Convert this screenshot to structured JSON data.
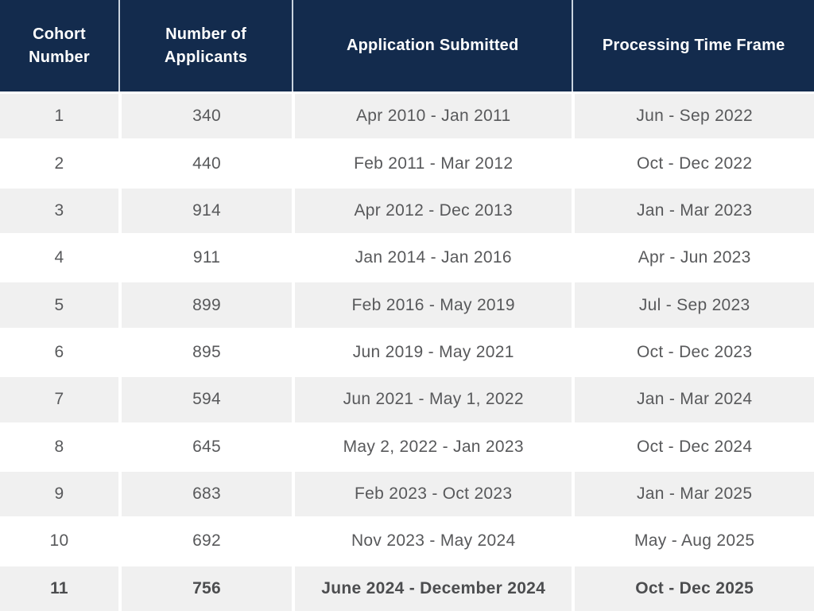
{
  "colors": {
    "header_bg": "#132b4d",
    "header_text": "#ffffff",
    "header_divider": "#c9d3de",
    "row_alt_bg": "#f0f0f0",
    "row_bg": "#ffffff",
    "body_text": "#58595b"
  },
  "table": {
    "headers": [
      {
        "label": "Cohort\nNumber"
      },
      {
        "label": "Number of\nApplicants"
      },
      {
        "label": "Application Submitted"
      },
      {
        "label": "Processing Time Frame"
      }
    ],
    "rows": [
      {
        "cohort": "1",
        "applicants": "340",
        "submitted": "Apr 2010 - Jan 2011",
        "processing": "Jun - Sep 2022",
        "emphasis": false
      },
      {
        "cohort": "2",
        "applicants": "440",
        "submitted": "Feb 2011 - Mar 2012",
        "processing": "Oct - Dec 2022",
        "emphasis": false
      },
      {
        "cohort": "3",
        "applicants": "914",
        "submitted": "Apr 2012 - Dec 2013",
        "processing": "Jan - Mar 2023",
        "emphasis": false
      },
      {
        "cohort": "4",
        "applicants": "911",
        "submitted": "Jan 2014 - Jan 2016",
        "processing": "Apr - Jun 2023",
        "emphasis": false
      },
      {
        "cohort": "5",
        "applicants": "899",
        "submitted": "Feb 2016 - May 2019",
        "processing": "Jul - Sep 2023",
        "emphasis": false
      },
      {
        "cohort": "6",
        "applicants": "895",
        "submitted": "Jun 2019 - May 2021",
        "processing": "Oct - Dec 2023",
        "emphasis": false
      },
      {
        "cohort": "7",
        "applicants": "594",
        "submitted": "Jun 2021 - May 1, 2022",
        "processing": "Jan - Mar 2024",
        "emphasis": false
      },
      {
        "cohort": "8",
        "applicants": "645",
        "submitted": "May 2, 2022 - Jan 2023",
        "processing": "Oct - Dec 2024",
        "emphasis": false
      },
      {
        "cohort": "9",
        "applicants": "683",
        "submitted": "Feb 2023 - Oct 2023",
        "processing": "Jan - Mar 2025",
        "emphasis": false
      },
      {
        "cohort": "10",
        "applicants": "692",
        "submitted": "Nov 2023 - May 2024",
        "processing": "May - Aug 2025",
        "emphasis": false
      },
      {
        "cohort": "11",
        "applicants": "756",
        "submitted": "June 2024 - December 2024",
        "processing": "Oct - Dec 2025",
        "emphasis": true
      }
    ]
  },
  "chart_data": {
    "type": "table",
    "columns": [
      "Cohort Number",
      "Number of Applicants",
      "Application Submitted",
      "Processing Time Frame"
    ],
    "rows": [
      [
        1,
        340,
        "Apr 2010 - Jan 2011",
        "Jun - Sep 2022"
      ],
      [
        2,
        440,
        "Feb 2011 - Mar 2012",
        "Oct - Dec 2022"
      ],
      [
        3,
        914,
        "Apr 2012 - Dec 2013",
        "Jan - Mar 2023"
      ],
      [
        4,
        911,
        "Jan 2014 - Jan 2016",
        "Apr - Jun 2023"
      ],
      [
        5,
        899,
        "Feb 2016 - May 2019",
        "Jul - Sep 2023"
      ],
      [
        6,
        895,
        "Jun 2019 - May 2021",
        "Oct - Dec 2023"
      ],
      [
        7,
        594,
        "Jun 2021 - May 1, 2022",
        "Jan - Mar 2024"
      ],
      [
        8,
        645,
        "May 2, 2022 - Jan 2023",
        "Oct - Dec 2024"
      ],
      [
        9,
        683,
        "Feb 2023 - Oct 2023",
        "Jan - Mar 2025"
      ],
      [
        10,
        692,
        "Nov 2023 - May 2024",
        "May - Aug 2025"
      ],
      [
        11,
        756,
        "June 2024 - December 2024",
        "Oct - Dec 2025"
      ]
    ]
  }
}
